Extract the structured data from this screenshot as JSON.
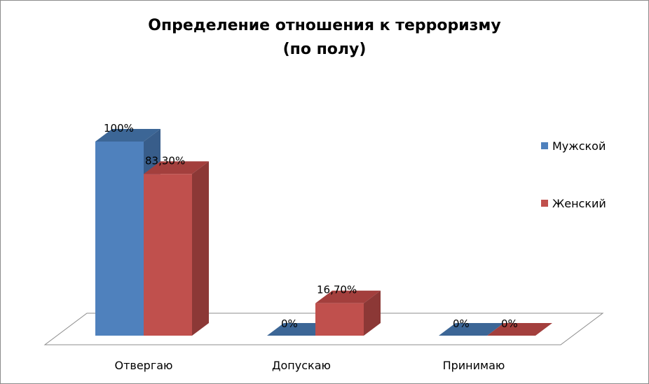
{
  "chart_data": {
    "type": "bar",
    "title": "Определение отношения к терроризму\n(по полу)",
    "categories": [
      "Отвергаю",
      "Допускаю",
      "Принимаю"
    ],
    "series": [
      {
        "name": "Мужской",
        "values": [
          100,
          0,
          0
        ],
        "labels": [
          "100%",
          "0%",
          "0%"
        ],
        "color": "#4f81bd",
        "side": "#385d8a",
        "top": "#3c6696"
      },
      {
        "name": "Женский",
        "values": [
          83.3,
          16.7,
          0
        ],
        "labels": [
          "83,30%",
          "16,70%",
          "0%"
        ],
        "color": "#c0504d",
        "side": "#8c3836",
        "top": "#a33f3d"
      }
    ],
    "ylim": [
      0,
      100
    ],
    "legend_position": "right",
    "grid": false,
    "style": "3d-clustered-column"
  }
}
